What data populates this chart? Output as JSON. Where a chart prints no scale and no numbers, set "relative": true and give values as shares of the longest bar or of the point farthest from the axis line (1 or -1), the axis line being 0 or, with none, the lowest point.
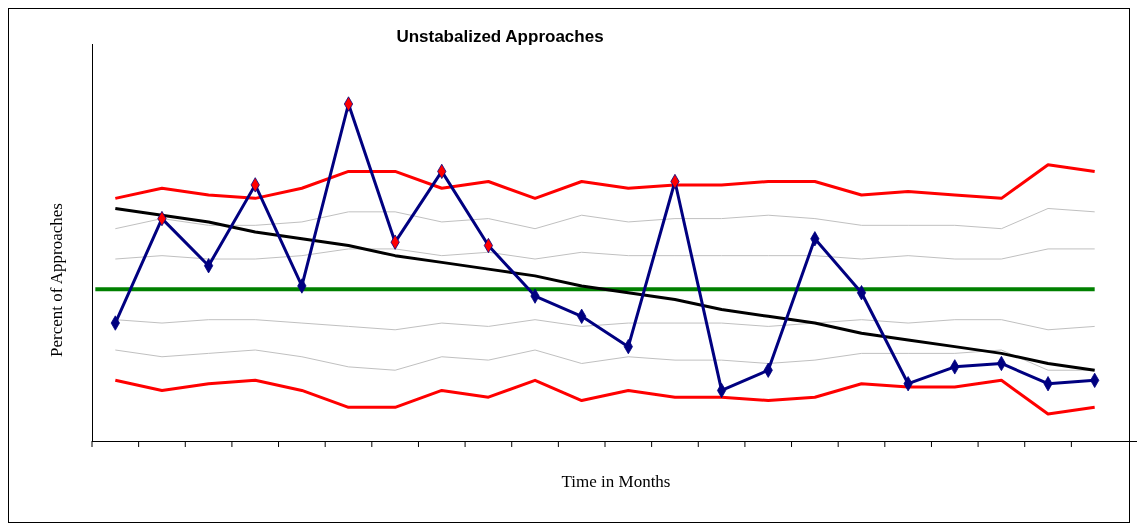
{
  "chart_data": {
    "type": "line",
    "title": "Unstabalized Approaches",
    "xlabel": "Time in Months",
    "ylabel": "Percent of Approaches",
    "relative": true,
    "categories": [
      null,
      null,
      null,
      null,
      null,
      null,
      null,
      null,
      null,
      null,
      null,
      null,
      null,
      null,
      null,
      null,
      null,
      null,
      null,
      null,
      null,
      null
    ],
    "ref_lines": [
      {
        "axis": "y",
        "value": 0.45,
        "color": "#008000"
      }
    ],
    "series": [
      {
        "color": "#ff0000",
        "values": [
          0.72,
          0.75,
          0.73,
          0.72,
          0.75,
          0.8,
          0.8,
          0.75,
          0.77,
          0.72,
          0.77,
          0.75,
          0.76,
          0.76,
          0.77,
          0.77,
          0.73,
          0.74,
          0.73,
          0.72,
          0.82,
          0.8
        ]
      },
      {
        "color": "#c0c0c0",
        "values": [
          0.63,
          0.66,
          0.64,
          0.64,
          0.65,
          0.68,
          0.68,
          0.65,
          0.66,
          0.63,
          0.67,
          0.65,
          0.66,
          0.66,
          0.67,
          0.66,
          0.64,
          0.64,
          0.64,
          0.63,
          0.69,
          0.68
        ]
      },
      {
        "color": "#c0c0c0",
        "values": [
          0.54,
          0.55,
          0.54,
          0.54,
          0.55,
          0.57,
          0.57,
          0.55,
          0.56,
          0.54,
          0.56,
          0.55,
          0.55,
          0.55,
          0.55,
          0.55,
          0.54,
          0.55,
          0.54,
          0.54,
          0.57,
          0.57
        ]
      },
      {
        "color": "#c0c0c0",
        "values": [
          0.36,
          0.35,
          0.36,
          0.36,
          0.35,
          0.34,
          0.33,
          0.35,
          0.34,
          0.36,
          0.34,
          0.35,
          0.35,
          0.35,
          0.34,
          0.35,
          0.36,
          0.35,
          0.36,
          0.36,
          0.33,
          0.34
        ]
      },
      {
        "color": "#c0c0c0",
        "values": [
          0.27,
          0.25,
          0.26,
          0.27,
          0.25,
          0.22,
          0.21,
          0.25,
          0.24,
          0.27,
          0.23,
          0.25,
          0.24,
          0.24,
          0.23,
          0.24,
          0.26,
          0.26,
          0.26,
          0.27,
          0.21,
          0.21
        ]
      },
      {
        "color": "#ff0000",
        "values": [
          0.18,
          0.15,
          0.17,
          0.18,
          0.15,
          0.1,
          0.1,
          0.15,
          0.13,
          0.18,
          0.12,
          0.15,
          0.13,
          0.13,
          0.12,
          0.13,
          0.17,
          0.16,
          0.16,
          0.18,
          0.08,
          0.1
        ]
      },
      {
        "color": "#000000",
        "values": [
          0.69,
          0.67,
          0.65,
          0.62,
          0.6,
          0.58,
          0.55,
          0.53,
          0.51,
          0.49,
          0.46,
          0.44,
          0.42,
          0.39,
          0.37,
          0.35,
          0.32,
          0.3,
          0.28,
          0.26,
          0.23,
          0.21
        ]
      },
      {
        "color": "#000080",
        "marker": "diamond",
        "values": [
          0.35,
          0.66,
          0.52,
          0.76,
          0.46,
          1,
          0.59,
          0.8,
          0.58,
          0.43,
          0.37,
          0.28,
          0.77,
          0.15,
          0.21,
          0.6,
          0.44,
          0.17,
          0.22,
          0.23,
          0.17,
          0.18
        ],
        "colors": [
          "#000080",
          "#ff0000",
          "#000080",
          "#ff0000",
          "#000080",
          "#ff0000",
          "#ff0000",
          "#ff0000",
          "#ff0000",
          "#000080",
          "#000080",
          "#000080",
          "#ff0000",
          "#000080",
          "#000080",
          "#000080",
          "#000080",
          "#000080",
          "#000080",
          "#000080",
          "#000080",
          "#000080"
        ]
      }
    ]
  }
}
